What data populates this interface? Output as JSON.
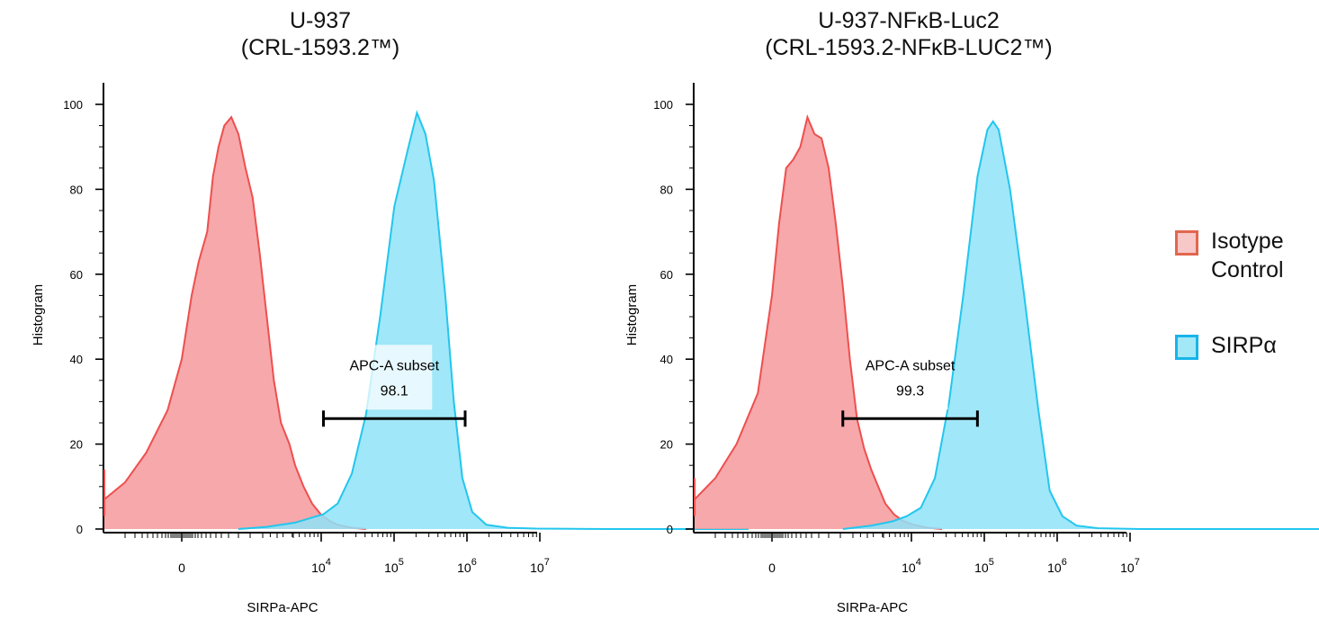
{
  "panels": [
    {
      "title_line1": "U-937",
      "title_line2": "(CRL-1593.2™)"
    },
    {
      "title_line1": "U-937-NFκB-Luc2",
      "title_line2": "(CRL-1593.2-NFκB-LUC2™)"
    }
  ],
  "legend": {
    "items": [
      {
        "label_line1": "Isotype",
        "label_line2": "Control",
        "fill": "#f8c7c7",
        "stroke": "#e2664e"
      },
      {
        "label_line1": "SIRPα",
        "label_line2": "",
        "fill": "#a3e8f7",
        "stroke": "#17b4ea"
      }
    ]
  },
  "colors": {
    "isotype_fill": "#f5999b",
    "isotype_line": "#ee4f4f",
    "sirpa_fill": "#8fe3f8",
    "sirpa_line": "#22c6ee",
    "overlap_fill": "#c7a4c0"
  },
  "chart_data": [
    {
      "type": "area",
      "xlabel": "SIRPa-APC",
      "ylabel": "Histogram",
      "x_scale": "biexponential",
      "xtick_labels": [
        "0",
        "10^4",
        "10^5",
        "10^6",
        "10^7"
      ],
      "ytick_labels": [
        "0",
        "20",
        "40",
        "60",
        "80",
        "100"
      ],
      "ylim": [
        0,
        100
      ],
      "grid": false,
      "series": [
        {
          "name": "Isotype Control",
          "points": [
            [
              -0.82,
              14
            ],
            [
              -0.8,
              8
            ],
            [
              -0.77,
              3
            ],
            [
              -0.7,
              4
            ],
            [
              -0.55,
              7
            ],
            [
              -0.4,
              11
            ],
            [
              -0.25,
              18
            ],
            [
              -0.1,
              28
            ],
            [
              0.0,
              40
            ],
            [
              0.07,
              55
            ],
            [
              0.12,
              63
            ],
            [
              0.18,
              70
            ],
            [
              0.22,
              83
            ],
            [
              0.26,
              90
            ],
            [
              0.3,
              95
            ],
            [
              0.35,
              97
            ],
            [
              0.4,
              93
            ],
            [
              0.45,
              85
            ],
            [
              0.5,
              78
            ],
            [
              0.55,
              65
            ],
            [
              0.6,
              50
            ],
            [
              0.65,
              35
            ],
            [
              0.7,
              25
            ],
            [
              0.76,
              20
            ],
            [
              0.8,
              15
            ],
            [
              0.86,
              10
            ],
            [
              0.92,
              6
            ],
            [
              0.98,
              3.5
            ],
            [
              1.04,
              2
            ],
            [
              1.1,
              1
            ],
            [
              1.2,
              0.3
            ],
            [
              1.3,
              0
            ]
          ]
        },
        {
          "name": "SIRPα",
          "points": [
            [
              0.4,
              0
            ],
            [
              0.6,
              0.5
            ],
            [
              0.8,
              1.5
            ],
            [
              0.9,
              2.5
            ],
            [
              1.0,
              3.5
            ],
            [
              1.1,
              6
            ],
            [
              1.2,
              13
            ],
            [
              1.3,
              27
            ],
            [
              1.4,
              50
            ],
            [
              1.5,
              76
            ],
            [
              1.6,
              90
            ],
            [
              1.66,
              98
            ],
            [
              1.72,
              93
            ],
            [
              1.78,
              82
            ],
            [
              1.86,
              55
            ],
            [
              1.92,
              30
            ],
            [
              1.98,
              12
            ],
            [
              2.05,
              4
            ],
            [
              2.15,
              1
            ],
            [
              2.3,
              0.3
            ],
            [
              2.5,
              0.1
            ],
            [
              3.0,
              0
            ],
            [
              4.0,
              0
            ]
          ]
        }
      ],
      "gate": {
        "label": "APC-A subset",
        "value": "98.1",
        "x_range": [
          1.0,
          2.0
        ],
        "y": 26
      }
    },
    {
      "type": "area",
      "xlabel": "SIRPa-APC",
      "ylabel": "Histogram",
      "x_scale": "biexponential",
      "xtick_labels": [
        "0",
        "10^4",
        "10^5",
        "10^6",
        "10^7"
      ],
      "ytick_labels": [
        "0",
        "20",
        "40",
        "60",
        "80",
        "100"
      ],
      "ylim": [
        0,
        100
      ],
      "grid": false,
      "series": [
        {
          "name": "Isotype Control",
          "points": [
            [
              -0.82,
              12
            ],
            [
              -0.8,
              6
            ],
            [
              -0.77,
              3
            ],
            [
              -0.7,
              4
            ],
            [
              -0.55,
              7
            ],
            [
              -0.4,
              12
            ],
            [
              -0.25,
              20
            ],
            [
              -0.1,
              32
            ],
            [
              0.0,
              55
            ],
            [
              0.05,
              72
            ],
            [
              0.1,
              85
            ],
            [
              0.15,
              87
            ],
            [
              0.2,
              90
            ],
            [
              0.25,
              97
            ],
            [
              0.3,
              93
            ],
            [
              0.35,
              92
            ],
            [
              0.4,
              85
            ],
            [
              0.45,
              72
            ],
            [
              0.5,
              57
            ],
            [
              0.55,
              40
            ],
            [
              0.6,
              26
            ],
            [
              0.65,
              19
            ],
            [
              0.7,
              14
            ],
            [
              0.75,
              10
            ],
            [
              0.8,
              6
            ],
            [
              0.86,
              3.5
            ],
            [
              0.92,
              2
            ],
            [
              1.0,
              1
            ],
            [
              1.1,
              0.3
            ],
            [
              1.2,
              0
            ]
          ]
        },
        {
          "name": "SIRPα",
          "points": [
            [
              0.5,
              0
            ],
            [
              0.7,
              0.8
            ],
            [
              0.85,
              1.8
            ],
            [
              0.95,
              3
            ],
            [
              1.05,
              5
            ],
            [
              1.15,
              12
            ],
            [
              1.25,
              30
            ],
            [
              1.35,
              55
            ],
            [
              1.45,
              83
            ],
            [
              1.52,
              94
            ],
            [
              1.56,
              96
            ],
            [
              1.6,
              94
            ],
            [
              1.68,
              80
            ],
            [
              1.78,
              55
            ],
            [
              1.88,
              28
            ],
            [
              1.96,
              9
            ],
            [
              2.05,
              3
            ],
            [
              2.15,
              0.8
            ],
            [
              2.3,
              0.2
            ],
            [
              2.6,
              0
            ],
            [
              4.0,
              0
            ]
          ]
        }
      ],
      "gate": {
        "label": "APC-A subset",
        "value": "99.3",
        "x_range": [
          0.5,
          1.45
        ],
        "y": 26
      }
    }
  ]
}
